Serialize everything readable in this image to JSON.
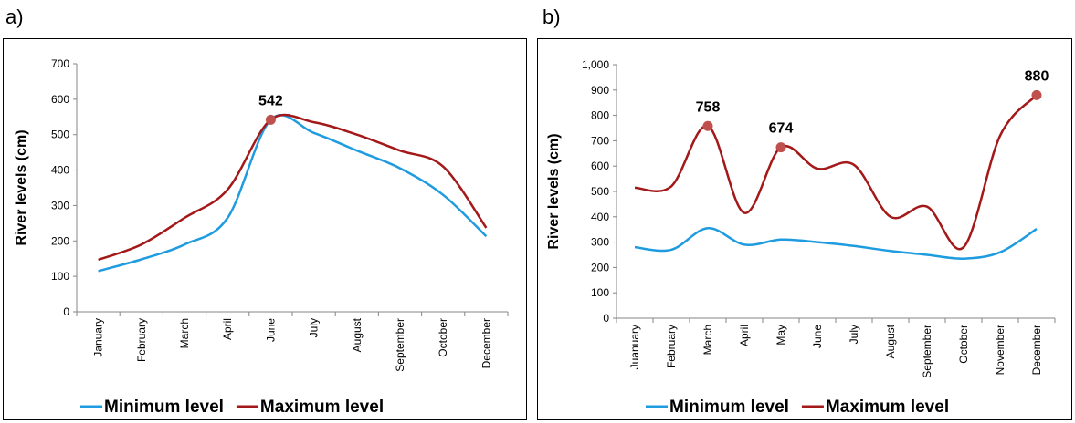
{
  "chart_data": [
    {
      "panel": "a)",
      "type": "line",
      "ylabel": "River levels (cm)",
      "ylim": [
        0,
        700
      ],
      "yticks": [
        0,
        100,
        200,
        300,
        400,
        500,
        600,
        700
      ],
      "categories": [
        "January",
        "February",
        "March",
        "April",
        "June",
        "July",
        "August",
        "September",
        "October",
        "December"
      ],
      "series": [
        {
          "name": "Minimum level",
          "color": "#1f9ce0",
          "values": [
            115,
            148,
            190,
            265,
            542,
            505,
            455,
            405,
            330,
            213
          ]
        },
        {
          "name": "Maximum level",
          "color": "#a31818",
          "values": [
            147,
            190,
            265,
            345,
            542,
            535,
            500,
            455,
            410,
            237
          ]
        }
      ],
      "annotations": [
        {
          "category_index": 4,
          "value": 542,
          "label": "542"
        }
      ],
      "legend": "bottom"
    },
    {
      "panel": "b)",
      "type": "line",
      "ylabel": "River levels (cm)",
      "ylim": [
        0,
        1000
      ],
      "yticks": [
        "0",
        "100",
        "200",
        "300",
        "400",
        "500",
        "600",
        "700",
        "800",
        "900",
        "1,000"
      ],
      "categories": [
        "Juanuary",
        "February",
        "March",
        "April",
        "May",
        "June",
        "July",
        "August",
        "September",
        "October",
        "November",
        "December"
      ],
      "series": [
        {
          "name": "Minimum level",
          "color": "#1f9ce0",
          "values": [
            280,
            270,
            355,
            290,
            310,
            300,
            285,
            265,
            250,
            235,
            260,
            352
          ]
        },
        {
          "name": "Maximum level",
          "color": "#a31818",
          "values": [
            515,
            520,
            758,
            415,
            674,
            590,
            605,
            400,
            440,
            280,
            720,
            880
          ]
        }
      ],
      "annotations": [
        {
          "category_index": 2,
          "value": 758,
          "label": "758"
        },
        {
          "category_index": 4,
          "value": 674,
          "label": "674"
        },
        {
          "category_index": 11,
          "value": 880,
          "label": "880"
        }
      ],
      "legend": "bottom"
    }
  ]
}
